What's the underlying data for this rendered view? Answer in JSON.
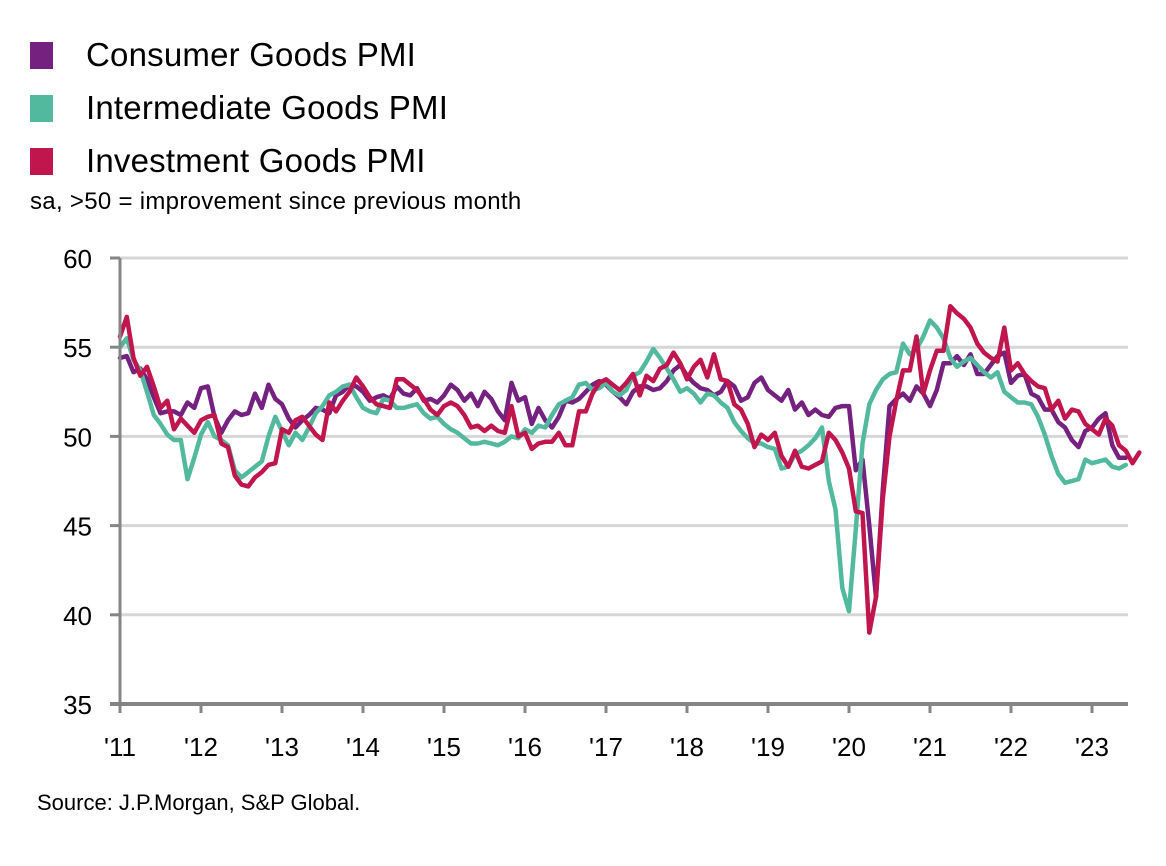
{
  "chart_data": {
    "type": "line",
    "title": "",
    "subtitle": "sa, >50 = improvement since previous month",
    "source": "Source: J.P.Morgan, S&P Global.",
    "xlabel": "",
    "ylabel": "",
    "ylim": [
      35,
      60
    ],
    "yticks": [
      35,
      40,
      45,
      50,
      55,
      60
    ],
    "ytick_labels": [
      "35",
      "40",
      "45",
      "50",
      "55",
      "60"
    ],
    "xticks": [
      "'11",
      "'12",
      "'13",
      "'14",
      "'15",
      "'16",
      "'17",
      "'18",
      "'19",
      "'20",
      "'21",
      "'22",
      "'23"
    ],
    "x_start": "2011-01",
    "x_frequency": "monthly",
    "grid": "horizontal",
    "legend_position": "top-left",
    "series": [
      {
        "name": "Consumer Goods PMI",
        "color": "#74217f",
        "values": [
          54.4,
          54.5,
          53.6,
          53.8,
          53.2,
          52.2,
          51.3,
          51.4,
          51.4,
          51.2,
          51.9,
          51.6,
          52.7,
          52.8,
          51.1,
          50.2,
          50.9,
          51.4,
          51.2,
          51.3,
          52.4,
          51.6,
          52.9,
          52.1,
          51.8,
          51.0,
          50.5,
          50.9,
          51.2,
          51.6,
          51.5,
          51.3,
          52.3,
          52.5,
          52.9,
          52.8,
          52.5,
          52.0,
          52.2,
          52.3,
          52.1,
          52.8,
          52.4,
          52.3,
          52.7,
          52.0,
          52.1,
          51.9,
          52.3,
          52.9,
          52.6,
          52.0,
          52.4,
          51.7,
          52.5,
          52.1,
          51.4,
          50.9,
          53.0,
          52.0,
          52.2,
          50.7,
          51.6,
          50.9,
          50.5,
          51.1,
          52.0,
          51.9,
          52.1,
          52.5,
          52.9,
          53.1,
          52.9,
          52.5,
          52.2,
          51.8,
          52.5,
          52.8,
          52.8,
          52.6,
          52.7,
          53.1,
          53.7,
          54.0,
          53.4,
          53.0,
          52.7,
          52.6,
          52.3,
          52.5,
          53.1,
          52.8,
          52.0,
          52.2,
          53.0,
          53.3,
          52.6,
          52.3,
          52.0,
          52.6,
          51.5,
          51.9,
          51.2,
          51.5,
          51.2,
          51.1,
          51.6,
          51.7,
          51.7,
          48.1,
          48.7,
          45.0,
          41.0,
          47.0,
          51.7,
          52.1,
          52.4,
          52.0,
          52.8,
          52.4,
          51.7,
          52.6,
          54.1,
          54.1,
          54.5,
          54.0,
          54.6,
          53.5,
          53.5,
          54.0,
          54.5,
          54.7,
          53.0,
          53.4,
          53.5,
          52.4,
          52.2,
          51.5,
          51.5,
          50.8,
          50.5,
          49.8,
          49.4,
          50.3,
          50.5,
          51.0,
          51.3,
          49.5,
          48.8,
          48.8
        ],
        "note": "values approximate, read from chart"
      },
      {
        "name": "Intermediate Goods PMI",
        "color": "#52b99e",
        "values": [
          55.0,
          55.5,
          54.3,
          53.7,
          52.5,
          51.2,
          50.7,
          50.1,
          49.8,
          49.8,
          47.6,
          48.8,
          50.1,
          50.8,
          50.0,
          49.8,
          49.5,
          48.1,
          47.7,
          48.0,
          48.3,
          48.6,
          50.0,
          51.1,
          50.3,
          49.5,
          50.2,
          49.8,
          50.5,
          51.3,
          51.7,
          52.3,
          52.5,
          52.8,
          52.9,
          52.2,
          51.6,
          51.4,
          51.3,
          52.1,
          52.0,
          51.6,
          51.6,
          51.7,
          51.8,
          51.3,
          51.0,
          51.1,
          50.7,
          50.4,
          50.2,
          49.9,
          49.6,
          49.6,
          49.7,
          49.6,
          49.5,
          49.7,
          50.0,
          49.9,
          50.4,
          50.2,
          50.6,
          50.5,
          51.2,
          51.8,
          52.0,
          52.2,
          52.9,
          53.0,
          52.6,
          52.7,
          53.0,
          52.5,
          52.3,
          52.6,
          53.4,
          53.6,
          54.2,
          54.9,
          54.4,
          53.8,
          53.2,
          52.5,
          52.7,
          52.4,
          51.9,
          52.4,
          52.3,
          51.9,
          51.6,
          50.8,
          50.3,
          49.9,
          49.6,
          49.6,
          49.4,
          49.3,
          48.2,
          48.3,
          49.0,
          49.2,
          49.5,
          49.9,
          50.5,
          47.5,
          45.9,
          41.5,
          40.2,
          44.8,
          49.6,
          51.8,
          52.6,
          53.2,
          53.5,
          53.6,
          55.2,
          54.6,
          54.9,
          55.6,
          56.5,
          56.1,
          55.5,
          54.4,
          53.9,
          54.2,
          54.4,
          54.0,
          53.6,
          53.3,
          53.6,
          52.5,
          52.2,
          51.9,
          51.9,
          51.8,
          51.1,
          50.1,
          48.9,
          47.9,
          47.4,
          47.5,
          47.6,
          48.7,
          48.5,
          48.6,
          48.7,
          48.3,
          48.2,
          48.4
        ],
        "note": "values approximate, read from chart"
      },
      {
        "name": "Investment Goods PMI",
        "color": "#c0154d",
        "values": [
          55.6,
          56.7,
          54.4,
          53.4,
          53.9,
          52.8,
          51.6,
          52.0,
          50.4,
          51.0,
          50.6,
          50.2,
          50.9,
          51.1,
          51.2,
          49.6,
          49.4,
          47.8,
          47.3,
          47.2,
          47.7,
          48.0,
          48.4,
          48.5,
          50.4,
          50.2,
          50.9,
          51.1,
          50.6,
          50.1,
          49.8,
          51.9,
          51.4,
          52.0,
          52.5,
          53.3,
          52.8,
          52.2,
          51.8,
          51.7,
          51.6,
          53.2,
          53.2,
          52.9,
          52.6,
          52.1,
          51.5,
          51.2,
          51.7,
          51.9,
          51.7,
          51.2,
          50.5,
          50.6,
          50.3,
          50.6,
          50.3,
          50.2,
          51.7,
          50.0,
          50.2,
          49.3,
          49.6,
          49.7,
          49.7,
          50.2,
          49.5,
          49.5,
          51.4,
          51.4,
          52.4,
          53.0,
          53.2,
          52.9,
          52.6,
          53.0,
          53.5,
          52.3,
          53.4,
          53.1,
          53.8,
          54.0,
          54.7,
          54.1,
          53.2,
          53.9,
          54.3,
          53.3,
          54.6,
          53.2,
          53.1,
          51.8,
          51.5,
          50.7,
          49.4,
          50.1,
          49.8,
          50.2,
          48.9,
          48.3,
          49.2,
          48.3,
          48.2,
          48.4,
          48.6,
          50.2,
          49.8,
          49.1,
          48.2,
          45.8,
          45.7,
          39.0,
          41.0,
          46.5,
          50.0,
          52.0,
          53.7,
          53.7,
          55.6,
          52.4,
          53.7,
          54.8,
          54.8,
          57.3,
          56.9,
          56.6,
          56.1,
          55.2,
          54.7,
          54.4,
          54.2,
          56.1,
          53.7,
          54.1,
          53.5,
          53.1,
          52.8,
          52.7,
          51.5,
          52.0,
          51.0,
          51.5,
          51.4,
          50.7,
          50.4,
          50.1,
          51.0,
          50.6,
          49.5,
          49.2,
          48.5,
          49.1
        ]
      }
    ]
  }
}
